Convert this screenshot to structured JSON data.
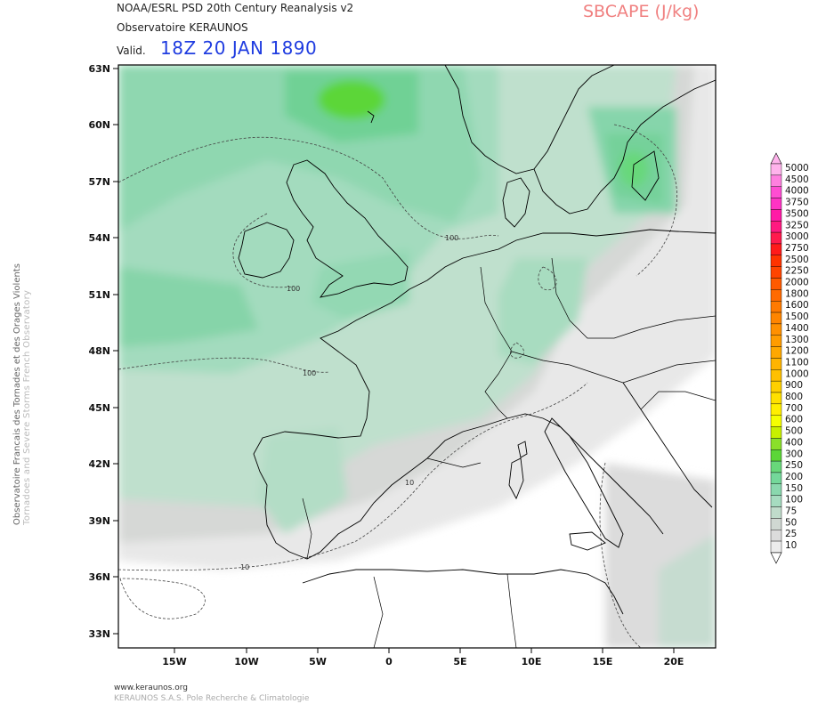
{
  "header": {
    "source": "NOAA/ESRL PSD 20th Century Reanalysis v2",
    "organization": "Observatoire KERAUNOS",
    "valid_label": "Valid.",
    "valid_time": "18Z 20 JAN 1890",
    "parameter": "SBCAPE (J/kg)"
  },
  "side_text": {
    "line1": "Observatoire Francais des Tornades et des Orages Violents",
    "line2": "Tornadoes and Severe Storms French Observatory"
  },
  "footer": {
    "website": "www.keraunos.org",
    "company": "KERAUNOS S.A.S. Pole Recherche & Climatologie"
  },
  "map": {
    "lat_ticks": [
      "63N",
      "60N",
      "57N",
      "54N",
      "51N",
      "48N",
      "45N",
      "42N",
      "39N",
      "36N",
      "33N"
    ],
    "lon_ticks": [
      "15W",
      "10W",
      "5W",
      "0",
      "5E",
      "10E",
      "15E",
      "20E"
    ],
    "contour_labels": [
      "100",
      "100",
      "100",
      "10",
      "10"
    ],
    "colors": {
      "land_line": "#000000",
      "contour": "#444444"
    }
  },
  "legend": {
    "levels": [
      "5000",
      "4500",
      "4000",
      "3750",
      "3500",
      "3250",
      "3000",
      "2750",
      "2500",
      "2250",
      "2000",
      "1800",
      "1600",
      "1500",
      "1400",
      "1300",
      "1200",
      "1100",
      "1000",
      "900",
      "800",
      "700",
      "600",
      "500",
      "400",
      "300",
      "250",
      "200",
      "150",
      "100",
      "75",
      "50",
      "25",
      "10"
    ],
    "colors": [
      "#ffb3ec",
      "#ff80df",
      "#ff4dd2",
      "#ff33c4",
      "#ff1aa6",
      "#ff1a80",
      "#ff1a4d",
      "#ff1a1a",
      "#ff3300",
      "#ff4400",
      "#ff5a00",
      "#ff6a00",
      "#ff7a00",
      "#ff8500",
      "#ff9000",
      "#ff9c00",
      "#ffa800",
      "#ffb400",
      "#ffc000",
      "#ffd000",
      "#ffe000",
      "#ffee00",
      "#f5ff00",
      "#c8f000",
      "#8ae02a",
      "#5cd638",
      "#68d87a",
      "#74d89a",
      "#8ad8ae",
      "#a6dcc0",
      "#c0dccb",
      "#d0d8d2",
      "#dcdcdc",
      "#ececec"
    ]
  }
}
